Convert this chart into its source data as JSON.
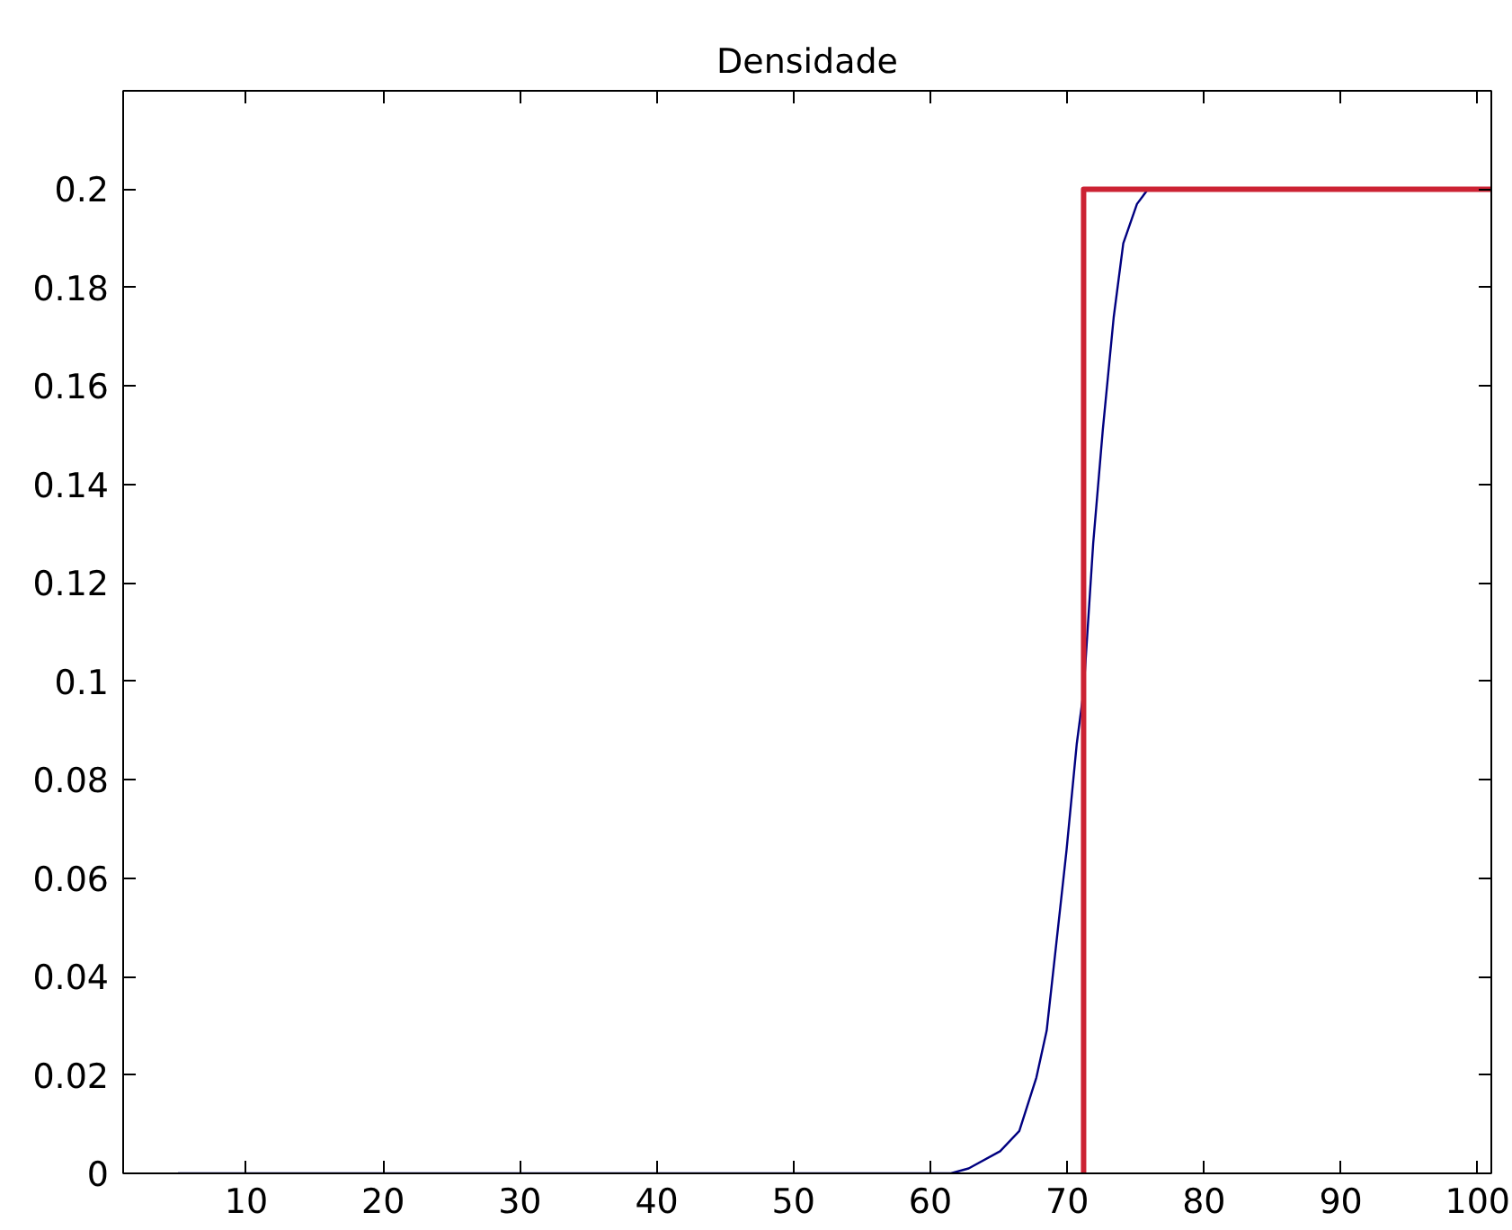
{
  "chart_data": {
    "type": "line",
    "title": "Densidade",
    "xlim": [
      1,
      101
    ],
    "ylim": [
      0,
      0.22
    ],
    "xticks": [
      10,
      20,
      30,
      40,
      50,
      60,
      70,
      80,
      90,
      100
    ],
    "yticks": [
      0,
      0.02,
      0.04,
      0.06,
      0.08,
      0.1,
      0.12,
      0.14,
      0.16,
      0.18,
      0.2
    ],
    "grid": false,
    "series": [
      {
        "color": "#000080",
        "x": [
          5,
          61.5,
          62.8,
          65.1,
          66.5,
          67.75,
          68.5,
          69.2,
          69.95,
          70.7,
          71.2,
          71.9,
          72.6,
          73.4,
          74.1,
          75.1,
          75.9
        ],
        "values": [
          0,
          0,
          0.001,
          0.0045,
          0.0086,
          0.0195,
          0.029,
          0.0466,
          0.0656,
          0.0873,
          0.098,
          0.128,
          0.151,
          0.174,
          0.189,
          0.197,
          0.2
        ]
      },
      {
        "color": "#cc2233",
        "x": [
          71.2,
          71.2,
          101
        ],
        "values": [
          0,
          0.2,
          0.2
        ]
      }
    ]
  }
}
